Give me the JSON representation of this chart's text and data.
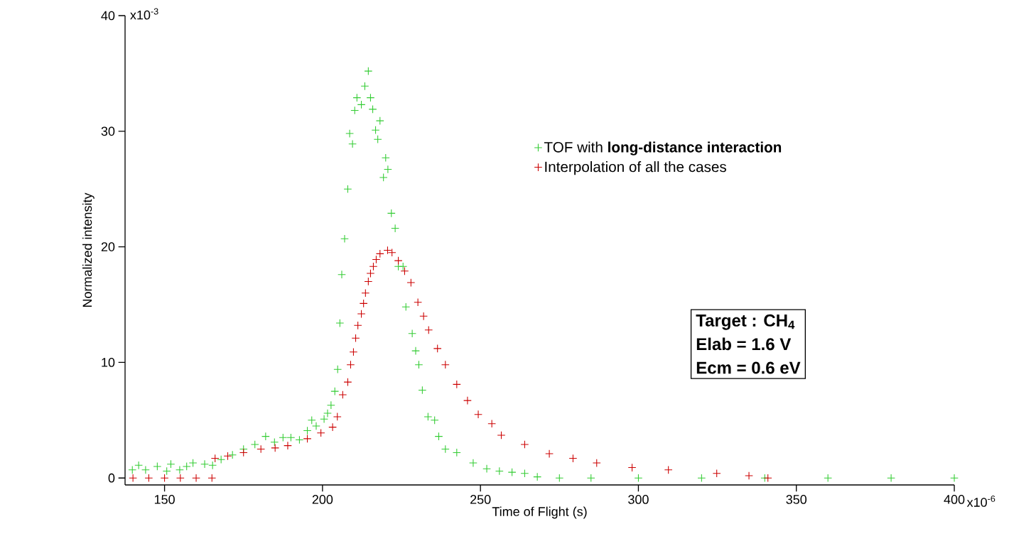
{
  "chart_data": {
    "type": "scatter",
    "xlabel": "Time of Flight (s)",
    "ylabel": "Normalized intensity",
    "xlim": [
      137.5,
      400
    ],
    "ylim": [
      -0.6,
      40
    ],
    "xticks": [
      150,
      200,
      250,
      300,
      350,
      400
    ],
    "yticks": [
      0,
      10,
      20,
      30,
      40
    ],
    "marker": "cross",
    "legend": "top right",
    "series": [
      {
        "name": "TOF with **long-distance interaction**",
        "color": "#33cc33",
        "x": [
          139.8,
          141.8,
          144,
          147.7,
          150.7,
          152,
          154.8,
          157,
          159,
          162.7,
          165.2,
          167.9,
          171.5,
          175,
          178.6,
          182,
          184.8,
          187.5,
          190,
          192.7,
          195.2,
          196.6,
          198,
          200.5,
          201.6,
          202.7,
          203.9,
          204.8,
          205.5,
          206.1,
          207,
          208,
          208.6,
          209.5,
          210.2,
          210.9,
          212.3,
          213.4,
          214.5,
          215.2,
          215.9,
          216.8,
          217.5,
          218.2,
          219.3,
          220,
          220.7,
          221.8,
          223,
          224,
          225.5,
          226.4,
          228.4,
          229.5,
          230.5,
          231.6,
          233.4,
          235.5,
          236.8,
          238.9,
          242.5,
          247.7,
          252,
          256,
          260,
          264,
          268,
          275,
          285,
          300,
          320,
          340,
          360,
          380,
          400
        ],
        "values": [
          0.7,
          1.1,
          0.7,
          1.0,
          0.6,
          1.2,
          0.7,
          1.0,
          1.3,
          1.2,
          1.1,
          1.6,
          2.0,
          2.5,
          2.9,
          3.6,
          3.1,
          3.5,
          3.5,
          3.3,
          4.1,
          5.0,
          4.5,
          5.1,
          5.6,
          6.3,
          7.5,
          9.4,
          13.4,
          17.6,
          20.7,
          25.0,
          29.8,
          28.9,
          31.8,
          32.9,
          32.3,
          33.9,
          35.2,
          32.9,
          31.9,
          30.1,
          29.3,
          30.9,
          26.0,
          27.7,
          26.7,
          22.9,
          21.6,
          18.3,
          18.3,
          14.8,
          12.5,
          11.0,
          9.8,
          7.6,
          5.3,
          5.0,
          3.6,
          2.5,
          2.2,
          1.3,
          0.8,
          0.6,
          0.5,
          0.4,
          0.1,
          0,
          0,
          0,
          0,
          0,
          0,
          0,
          0
        ]
      },
      {
        "name": "Interpolation of all the cases",
        "color": "#cc0000",
        "x": [
          140,
          145,
          150,
          155,
          160,
          165,
          166,
          170,
          175,
          180.5,
          185,
          189,
          195.2,
          199.5,
          203.2,
          204.7,
          206.4,
          208,
          208.9,
          209.8,
          210.5,
          211.2,
          212.3,
          213,
          213.6,
          214.5,
          215.2,
          216.1,
          217,
          218.2,
          220.6,
          222,
          224,
          226,
          228,
          230.2,
          232,
          233.6,
          236.4,
          238.9,
          242.5,
          245.9,
          249.3,
          253.6,
          256.6,
          264,
          271.8,
          279.3,
          286.8,
          298,
          309.5,
          324.8,
          335,
          341
        ],
        "values": [
          0,
          0,
          0,
          0,
          0,
          0,
          1.7,
          1.9,
          2.2,
          2.5,
          2.6,
          2.8,
          3.4,
          3.9,
          4.4,
          5.3,
          7.2,
          8.3,
          9.8,
          10.9,
          12.1,
          13.2,
          14.2,
          15.1,
          16.0,
          17.0,
          17.7,
          18.3,
          18.9,
          19.4,
          19.7,
          19.5,
          18.8,
          17.9,
          16.9,
          15.2,
          14.0,
          12.8,
          11.2,
          9.8,
          8.1,
          6.7,
          5.5,
          4.7,
          3.7,
          2.9,
          2.1,
          1.7,
          1.3,
          0.9,
          0.7,
          0.4,
          0.2,
          0
        ]
      }
    ],
    "annotations": [
      "x10$^{-3}$",
      "x10$^{-6}$",
      "Target : CH$_{4}$",
      "Elab = 1.6 V",
      "Ecm = 0.6 eV"
    ]
  }
}
